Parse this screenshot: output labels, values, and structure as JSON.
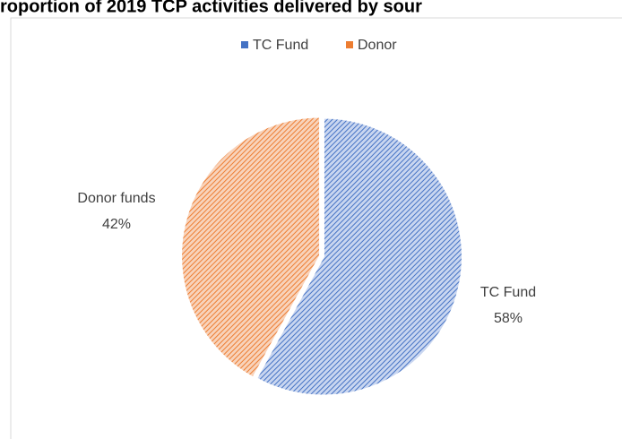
{
  "chart_data": {
    "type": "pie",
    "title": "roportion of 2019 TCP activities delivered by sour",
    "categories": [
      "TC Fund",
      "Donor"
    ],
    "values": [
      58,
      42
    ],
    "value_labels": [
      "58%",
      "42%"
    ],
    "label_names": [
      "TC Fund",
      "Donor funds"
    ],
    "colors": [
      "#4472c4",
      "#ed7d31"
    ],
    "legend": "top"
  }
}
